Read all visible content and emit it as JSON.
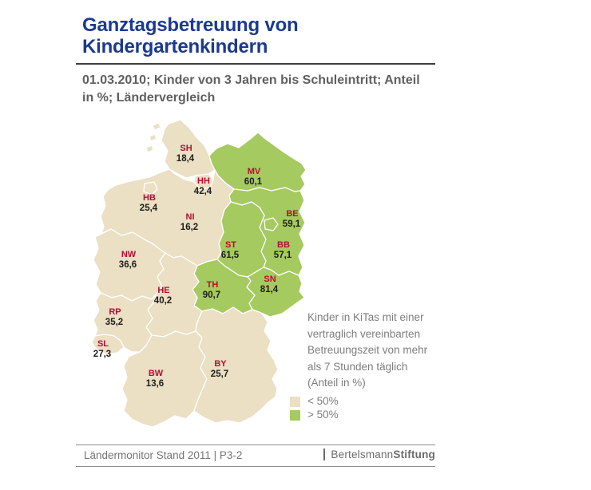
{
  "header": {
    "title": "Ganztagsbetreuung von Kindergartenkindern",
    "subtitle": "01.03.2010; Kinder von 3 Jahren bis Schuleintritt; Anteil in %; Ländervergleich"
  },
  "map": {
    "states": [
      {
        "code": "SH",
        "value": "18,4",
        "category": "below"
      },
      {
        "code": "HH",
        "value": "42,4",
        "category": "below"
      },
      {
        "code": "HB",
        "value": "25,4",
        "category": "below"
      },
      {
        "code": "NI",
        "value": "16,2",
        "category": "below"
      },
      {
        "code": "MV",
        "value": "60,1",
        "category": "above"
      },
      {
        "code": "BE",
        "value": "59,1",
        "category": "above"
      },
      {
        "code": "BB",
        "value": "57,1",
        "category": "above"
      },
      {
        "code": "ST",
        "value": "61,5",
        "category": "above"
      },
      {
        "code": "SN",
        "value": "81,4",
        "category": "above"
      },
      {
        "code": "TH",
        "value": "90,7",
        "category": "above"
      },
      {
        "code": "NW",
        "value": "36,6",
        "category": "below"
      },
      {
        "code": "HE",
        "value": "40,2",
        "category": "below"
      },
      {
        "code": "RP",
        "value": "35,2",
        "category": "below"
      },
      {
        "code": "SL",
        "value": "27,3",
        "category": "below"
      },
      {
        "code": "BW",
        "value": "13,6",
        "category": "below"
      },
      {
        "code": "BY",
        "value": "25,7",
        "category": "below"
      }
    ],
    "colors": {
      "below": "#EBDFC4",
      "above": "#A5CA60",
      "code_label": "#B50D33",
      "value_label": "#1D1D1B",
      "border": "#FFFFFF"
    }
  },
  "legend": {
    "description": "Kinder in KiTas mit einer vertraglich vereinbarten Betreuungszeit von mehr als 7 Stunden täglich (Anteil in %)",
    "items": [
      {
        "label": "< 50%",
        "color": "#EBDFC4"
      },
      {
        "label": "> 50%",
        "color": "#A5CA60"
      }
    ]
  },
  "footer": {
    "source": "Ländermonitor Stand 2011 | P3-2",
    "logo": {
      "part1": "Bertelsmann",
      "part2": "Stiftung"
    }
  },
  "chart_data": {
    "type": "heatmap",
    "subtype": "choropleth-map-germany-federal-states",
    "title": "Ganztagsbetreuung von Kindergartenkindern",
    "subtitle": "01.03.2010; Kinder von 3 Jahren bis Schuleintritt; Anteil in %; Ländervergleich",
    "categories": [
      "SH",
      "HH",
      "HB",
      "NI",
      "MV",
      "BE",
      "BB",
      "ST",
      "SN",
      "TH",
      "NW",
      "HE",
      "RP",
      "SL",
      "BW",
      "BY"
    ],
    "values": [
      18.4,
      42.4,
      25.4,
      16.2,
      60.1,
      59.1,
      57.1,
      61.5,
      81.4,
      90.7,
      36.6,
      40.2,
      35.2,
      27.3,
      13.6,
      25.7
    ],
    "unit": "%",
    "classes": [
      {
        "label": "< 50%",
        "color": "#EBDFC4"
      },
      {
        "label": "> 50%",
        "color": "#A5CA60"
      }
    ],
    "legend_note": "Kinder in KiTas mit einer vertraglich vereinbarten Betreuungszeit von mehr als 7 Stunden täglich (Anteil in %)",
    "legend_position": "right-bottom",
    "source": "Ländermonitor Stand 2011 | P3-2"
  }
}
